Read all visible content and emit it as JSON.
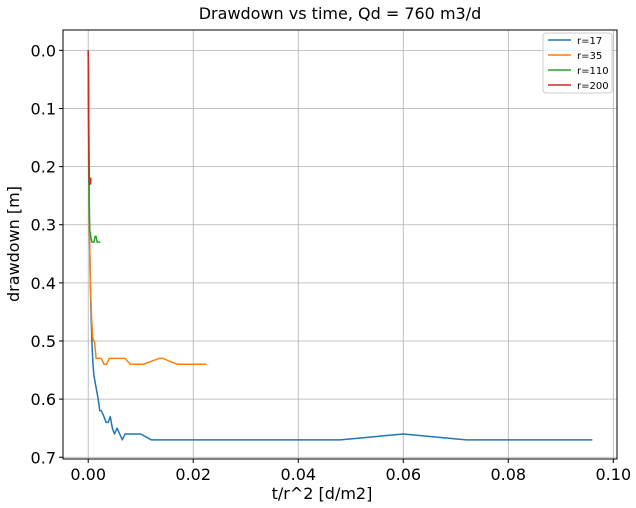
{
  "chart_data": {
    "type": "line",
    "title": "Drawdown vs time, Qd = 760 m3/d",
    "xlabel": "t/r^2 [d/m2]",
    "ylabel": "drawdown [m]",
    "xlim": [
      -0.0048,
      0.1007
    ],
    "ylim": [
      0.703,
      -0.035
    ],
    "y_inverted": true,
    "grid": true,
    "legend_position": "top-right",
    "xticks": [
      0.0,
      0.02,
      0.04,
      0.06,
      0.08,
      0.1
    ],
    "xtick_labels": [
      "0.00",
      "0.02",
      "0.04",
      "0.06",
      "0.08",
      "0.10"
    ],
    "yticks": [
      0.0,
      0.1,
      0.2,
      0.3,
      0.4,
      0.5,
      0.6,
      0.7
    ],
    "ytick_labels": [
      "0.0",
      "0.1",
      "0.2",
      "0.3",
      "0.4",
      "0.5",
      "0.6",
      "0.7"
    ],
    "series": [
      {
        "name": "r=17",
        "color": "#1f77b4",
        "x": [
          0,
          0.0001,
          0.0002,
          0.0003,
          0.0005,
          0.0007,
          0.0009,
          0.0011,
          0.0013,
          0.0015,
          0.0017,
          0.0019,
          0.0022,
          0.0025,
          0.003,
          0.0034,
          0.0038,
          0.0042,
          0.0046,
          0.005,
          0.0055,
          0.006,
          0.0065,
          0.007,
          0.008,
          0.009,
          0.01,
          0.012,
          0.024,
          0.036,
          0.048,
          0.06,
          0.072,
          0.084,
          0.096
        ],
        "y": [
          0.0,
          0.1,
          0.25,
          0.35,
          0.44,
          0.5,
          0.54,
          0.56,
          0.57,
          0.58,
          0.59,
          0.6,
          0.62,
          0.62,
          0.63,
          0.64,
          0.64,
          0.63,
          0.65,
          0.66,
          0.65,
          0.66,
          0.67,
          0.66,
          0.66,
          0.66,
          0.66,
          0.67,
          0.67,
          0.67,
          0.67,
          0.66,
          0.67,
          0.67,
          0.67
        ]
      },
      {
        "name": "r=35",
        "color": "#ff7f0e",
        "x": [
          0,
          0.0001,
          0.0002,
          0.0004,
          0.0006,
          0.0008,
          0.001,
          0.0012,
          0.0015,
          0.0018,
          0.0021,
          0.0025,
          0.003,
          0.0035,
          0.004,
          0.0045,
          0.005,
          0.006,
          0.007,
          0.008,
          0.009,
          0.0105,
          0.012,
          0.0135,
          0.0143,
          0.0155,
          0.017,
          0.0185,
          0.02,
          0.0225
        ],
        "y": [
          0.0,
          0.15,
          0.3,
          0.4,
          0.45,
          0.49,
          0.5,
          0.5,
          0.53,
          0.53,
          0.53,
          0.53,
          0.54,
          0.54,
          0.53,
          0.53,
          0.53,
          0.53,
          0.53,
          0.54,
          0.54,
          0.54,
          0.535,
          0.53,
          0.53,
          0.535,
          0.54,
          0.54,
          0.54,
          0.54
        ]
      },
      {
        "name": "r=110",
        "color": "#2ca02c",
        "x": [
          0,
          5e-05,
          0.0001,
          0.0002,
          0.0003,
          0.0005,
          0.0007,
          0.0009,
          0.0011,
          0.0013,
          0.0015,
          0.0017,
          0.002,
          0.0023
        ],
        "y": [
          0.0,
          0.1,
          0.2,
          0.28,
          0.31,
          0.32,
          0.33,
          0.33,
          0.33,
          0.32,
          0.32,
          0.33,
          0.33,
          0.33
        ]
      },
      {
        "name": "r=200",
        "color": "#d62728",
        "x": [
          0,
          5e-05,
          0.0001,
          0.00015,
          0.0002,
          0.00025,
          0.0003,
          0.00035,
          0.0004,
          0.00045,
          0.0005,
          0.0006
        ],
        "y": [
          0.0,
          0.08,
          0.15,
          0.2,
          0.22,
          0.23,
          0.22,
          0.23,
          0.22,
          0.23,
          0.22,
          0.22
        ]
      }
    ]
  }
}
